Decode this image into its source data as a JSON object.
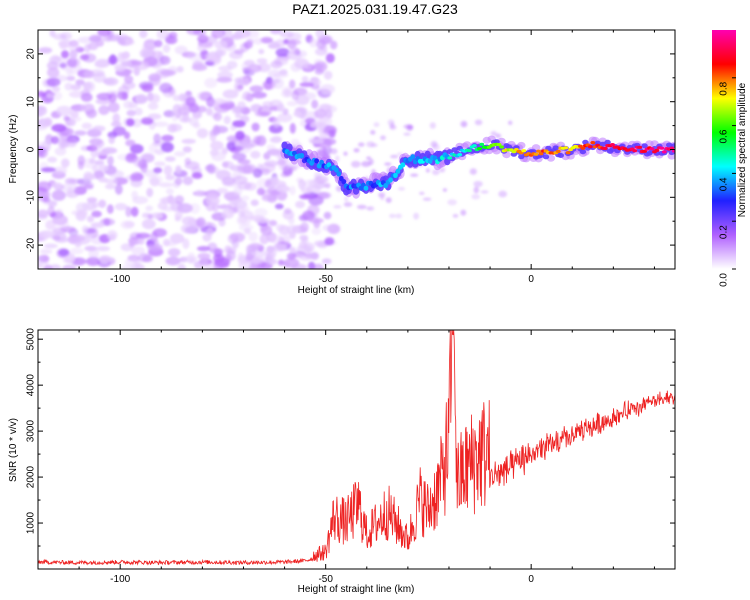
{
  "page": {
    "title": "PAZ1.2025.031.19.47.G23"
  },
  "chart_data": [
    {
      "type": "heatmap",
      "title": "PAZ1.2025.031.19.47.G23",
      "xlabel": "Height of straight line (km)",
      "ylabel": "Frequency (Hz)",
      "xlim": [
        -120,
        35
      ],
      "ylim": [
        -25,
        25
      ],
      "x_ticks": [
        -100,
        -50,
        0
      ],
      "y_ticks": [
        -20,
        -10,
        0,
        10,
        20
      ],
      "grid": false,
      "colorbar": {
        "label": "Normalized spectral amplitude",
        "range": [
          0,
          1
        ],
        "ticks": [
          0.0,
          0.2,
          0.4,
          0.6,
          0.8
        ],
        "tick_labels": [
          "0.0",
          "0.2",
          "0.4",
          "0.6",
          "0.8"
        ],
        "colors": [
          "#ffffff",
          "#b060ff",
          "#2020ff",
          "#00ffff",
          "#00ff00",
          "#ffff00",
          "#ff0000",
          "#ff00b0"
        ]
      },
      "ridge": [
        {
          "x": -60,
          "freq": 0,
          "amplitude": 0.35
        },
        {
          "x": -55,
          "freq": -2,
          "amplitude": 0.3
        },
        {
          "x": -48,
          "freq": -4,
          "amplitude": 0.35
        },
        {
          "x": -45,
          "freq": -8,
          "amplitude": 0.32
        },
        {
          "x": -35,
          "freq": -7,
          "amplitude": 0.35
        },
        {
          "x": -30,
          "freq": -2,
          "amplitude": 0.35
        },
        {
          "x": -22,
          "freq": -2,
          "amplitude": 0.4
        },
        {
          "x": -15,
          "freq": 0,
          "amplitude": 0.45
        },
        {
          "x": -10,
          "freq": 1,
          "amplitude": 0.65
        },
        {
          "x": -5,
          "freq": 0,
          "amplitude": 0.7
        },
        {
          "x": 0,
          "freq": -1,
          "amplitude": 0.8
        },
        {
          "x": 10,
          "freq": 0,
          "amplitude": 0.75
        },
        {
          "x": 15,
          "freq": 1,
          "amplitude": 0.85
        },
        {
          "x": 25,
          "freq": 0,
          "amplitude": 0.9
        },
        {
          "x": 35,
          "freq": 0,
          "amplitude": 0.95
        }
      ]
    },
    {
      "type": "line",
      "xlabel": "Height of straight line (km)",
      "ylabel": "SNR (10 * v/v)",
      "xlim": [
        -120,
        35
      ],
      "ylim": [
        0,
        5200
      ],
      "x_ticks": [
        -100,
        -50,
        0
      ],
      "y_ticks": [
        1000,
        2000,
        3000,
        4000,
        5000
      ],
      "grid": false,
      "series": [
        {
          "color": "#ee2222",
          "x": [
            -120,
            -110,
            -100,
            -90,
            -80,
            -70,
            -60,
            -55,
            -50,
            -48,
            -45,
            -42,
            -40,
            -35,
            -30,
            -27,
            -25,
            -22,
            -20,
            -19,
            -18,
            -15,
            -12,
            -10,
            -5,
            0,
            5,
            10,
            15,
            20,
            25,
            30,
            35
          ],
          "y": [
            150,
            140,
            150,
            140,
            150,
            140,
            150,
            180,
            300,
            900,
            800,
            1100,
            600,
            1000,
            500,
            1200,
            1000,
            1500,
            2200,
            5100,
            1500,
            1800,
            2000,
            2000,
            2200,
            2500,
            2700,
            2900,
            3100,
            3300,
            3500,
            3650,
            3750
          ]
        }
      ]
    }
  ]
}
